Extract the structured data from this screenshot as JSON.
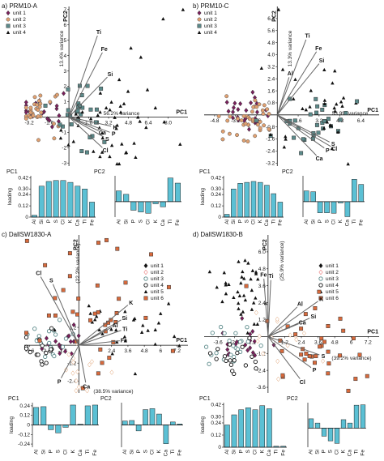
{
  "colors": {
    "bar_fill": "#5bc0d4",
    "loading_line": "#666666",
    "unit_1": "#7a1f5c",
    "unit_2": "#e0a070",
    "unit_3": "#5b8a8a",
    "unit_4": "#111111",
    "unit_5": "#111111",
    "unit_6": "#d86a3c"
  },
  "chart_data": [
    {
      "panel": "a) PRM10-A",
      "type": "scatter",
      "xlabel": "PC1",
      "ylabel": "PC2",
      "x_variance_label": "56.2% variance",
      "y_variance_label": "13.4% variance",
      "xlim": [
        -3.6,
        9.6
      ],
      "ylim": [
        -3.2,
        7.2
      ],
      "xticks": [
        "-3.2",
        "-1.6",
        "1.6",
        "3.2",
        "4.8",
        "6.4",
        "8.0"
      ],
      "yticks": [
        "-3",
        "-2",
        "-1",
        "1",
        "2",
        "3",
        "4",
        "5",
        "6",
        "7"
      ],
      "legend": {
        "placement": "top-left",
        "entries": [
          {
            "label": "unit 1",
            "marker": "diamond",
            "color": "#7a1f5c"
          },
          {
            "label": "unit 2",
            "marker": "circle",
            "color": "#e0a070"
          },
          {
            "label": "unit 3",
            "marker": "square",
            "color": "#5b8a8a"
          },
          {
            "label": "unit 4",
            "marker": "triangle",
            "color": "#111111"
          }
        ]
      },
      "loadings": [
        {
          "label": "Ti",
          "x": 2.3,
          "y": 5.3
        },
        {
          "label": "Fe",
          "x": 2.7,
          "y": 4.2
        },
        {
          "label": "Si",
          "x": 3.1,
          "y": 2.6
        },
        {
          "label": "Ca",
          "x": 2.4,
          "y": -0.9
        },
        {
          "label": "K",
          "x": 3.4,
          "y": -0.6
        },
        {
          "label": "P",
          "x": 3.3,
          "y": -1.0
        },
        {
          "label": "S",
          "x": 2.8,
          "y": -1.3
        },
        {
          "label": "Cl",
          "x": 2.7,
          "y": -2.0
        }
      ],
      "clusters": [
        {
          "unit": "unit 1",
          "cx": -2.2,
          "cy": 0.6,
          "sx": 0.9,
          "sy": 0.6,
          "n": 22
        },
        {
          "unit": "unit 2",
          "cx": -2.5,
          "cy": 0.5,
          "sx": 0.9,
          "sy": 0.7,
          "n": 30
        },
        {
          "unit": "unit 3",
          "cx": 0.9,
          "cy": 0.3,
          "sx": 0.8,
          "sy": 1.2,
          "n": 30
        },
        {
          "unit": "unit 4",
          "cx": 3.0,
          "cy": -0.6,
          "sx": 2.3,
          "sy": 1.4,
          "n": 45
        }
      ],
      "extra_points": [
        {
          "unit": "unit 4",
          "x": 9.2,
          "y": 7.0
        },
        {
          "unit": "unit 4",
          "x": 7.6,
          "y": 6.4
        },
        {
          "unit": "unit 4",
          "x": 5.0,
          "y": 4.5
        },
        {
          "unit": "unit 4",
          "x": 5.8,
          "y": 3.9
        }
      ],
      "bar_charts": [
        {
          "title": "PC1",
          "ylabel": "loading",
          "yticks": [
            "0",
            "0.12",
            "0.24",
            "0.30",
            "0.42"
          ],
          "ylim": [
            0,
            0.44
          ],
          "categories": [
            "Al",
            "Si",
            "P",
            "S",
            "Cl",
            "K",
            "Ca",
            "Ti",
            "Fe"
          ],
          "values": [
            0.02,
            0.33,
            0.38,
            0.39,
            0.39,
            0.37,
            0.33,
            0.3,
            0.16
          ]
        },
        {
          "title": "PC2",
          "yticks": [],
          "ylim": [
            -0.36,
            0.6
          ],
          "categories": [
            "Al",
            "Si",
            "P",
            "S",
            "Cl",
            "K",
            "Ca",
            "Ti",
            "Fe"
          ],
          "values": [
            0.25,
            0.17,
            -0.2,
            -0.24,
            -0.27,
            -0.05,
            -0.12,
            0.55,
            0.43
          ]
        }
      ]
    },
    {
      "panel": "b) PRM10-C",
      "type": "scatter",
      "xlabel": "PC1",
      "ylabel": "PC2",
      "x_variance_label": "53.9% variance",
      "y_variance_label": "13.3% variance",
      "xlim": [
        -5.6,
        7.8
      ],
      "ylim": [
        -3.4,
        7.2
      ],
      "xticks": [
        "-4.8",
        "-3.2",
        "-1.6",
        "1.6",
        "3.2",
        "4.8",
        "6.4"
      ],
      "yticks": [
        "-3.2",
        "-2.4",
        "-1.6",
        "-0.8",
        "0.8",
        "1.6",
        "2.4",
        "3.2",
        "4.0",
        "4.8",
        "5.6",
        "6.4"
      ],
      "legend": {
        "placement": "top-left",
        "entries": [
          {
            "label": "unit 1",
            "marker": "diamond",
            "color": "#7a1f5c"
          },
          {
            "label": "unit 2",
            "marker": "circle",
            "color": "#e0a070"
          },
          {
            "label": "unit 3",
            "marker": "square",
            "color": "#5b8a8a"
          },
          {
            "label": "unit 4",
            "marker": "triangle",
            "color": "#111111"
          }
        ]
      },
      "loadings": [
        {
          "label": "Ti",
          "x": 2.2,
          "y": 5.0
        },
        {
          "label": "Fe",
          "x": 3.0,
          "y": 4.2
        },
        {
          "label": "Al",
          "x": 0.9,
          "y": 2.5
        },
        {
          "label": "Si",
          "x": 3.2,
          "y": 3.4
        },
        {
          "label": "S",
          "x": 4.0,
          "y": -1.8
        },
        {
          "label": "P",
          "x": 3.6,
          "y": -2.2
        },
        {
          "label": "Cl",
          "x": 4.1,
          "y": -2.1
        },
        {
          "label": "Ca",
          "x": 3.0,
          "y": -2.7
        }
      ],
      "clusters": [
        {
          "unit": "unit 1",
          "cx": -2.4,
          "cy": 0.1,
          "sx": 0.9,
          "sy": 0.6,
          "n": 25
        },
        {
          "unit": "unit 2",
          "cx": -1.8,
          "cy": -0.3,
          "sx": 1.1,
          "sy": 0.7,
          "n": 40
        },
        {
          "unit": "unit 3",
          "cx": 2.2,
          "cy": -0.6,
          "sx": 1.6,
          "sy": 0.8,
          "n": 32
        },
        {
          "unit": "unit 4",
          "cx": 3.3,
          "cy": 0.6,
          "sx": 1.7,
          "sy": 1.4,
          "n": 30
        }
      ],
      "extra_points": [
        {
          "unit": "unit 4",
          "x": 0.1,
          "y": 7.0
        },
        {
          "unit": "unit 4",
          "x": 3.6,
          "y": 3.0
        },
        {
          "unit": "unit 3",
          "x": 6.1,
          "y": 0.9
        }
      ],
      "bar_charts": [
        {
          "title": "PC1",
          "ylabel": "loading",
          "yticks": [
            "0",
            "0.12",
            "0.24",
            "0.30",
            "0.42"
          ],
          "ylim": [
            0,
            0.44
          ],
          "categories": [
            "Al",
            "Si",
            "P",
            "S",
            "Cl",
            "K",
            "Ca",
            "Ti",
            "Fe"
          ],
          "values": [
            0.03,
            0.3,
            0.36,
            0.37,
            0.38,
            0.37,
            0.34,
            0.25,
            0.16
          ]
        },
        {
          "title": "PC2",
          "yticks": [],
          "ylim": [
            -0.36,
            0.6
          ],
          "categories": [
            "Al",
            "Si",
            "P",
            "S",
            "Cl",
            "K",
            "Ca",
            "Ti",
            "Fe"
          ],
          "values": [
            0.25,
            0.23,
            -0.26,
            -0.26,
            -0.27,
            -0.03,
            -0.35,
            0.52,
            0.4
          ]
        }
      ]
    },
    {
      "panel": "c) DallSW1830-A",
      "type": "scatter",
      "xlabel": "PC1",
      "ylabel": "PC2",
      "x_variance_label": "(38.5% variance)",
      "y_variance_label": "(22.2% variance)",
      "xlim": [
        -4.0,
        8.0
      ],
      "ylim": [
        -3.2,
        7.4
      ],
      "xticks": [
        "-3.6",
        "-2.4",
        "-1.2",
        "2.4",
        "3.6",
        "4.8",
        "6",
        "7.2"
      ],
      "yticks": [
        "-2.4",
        "-1.2",
        "1.2"
      ],
      "legend": {
        "placement": "top-right",
        "entries": [
          {
            "label": "unit 1",
            "marker": "diamond",
            "color": "#111111"
          },
          {
            "label": "unit 2",
            "marker": "diamond-open",
            "color": "#e03a3a"
          },
          {
            "label": "unit 3",
            "marker": "circle-open",
            "color": "#5b8a8a"
          },
          {
            "label": "unit 4",
            "marker": "circle-open",
            "color": "#111111"
          },
          {
            "label": "unit 5",
            "marker": "triangle",
            "color": "#111111"
          },
          {
            "label": "unit 6",
            "marker": "square",
            "color": "#d86a3c"
          }
        ]
      },
      "loadings": [
        {
          "label": "Cl",
          "x": -2.8,
          "y": 4.6
        },
        {
          "label": "S",
          "x": -1.9,
          "y": 4.1
        },
        {
          "label": "K",
          "x": 3.6,
          "y": 2.7
        },
        {
          "label": "Si",
          "x": 3.1,
          "y": 1.7
        },
        {
          "label": "Al",
          "x": 2.4,
          "y": 1.2
        },
        {
          "label": "Ti",
          "x": 3.1,
          "y": 1.0
        },
        {
          "label": "Fe",
          "x": 3.0,
          "y": 0.3
        },
        {
          "label": "P",
          "x": -1.3,
          "y": -2.2
        },
        {
          "label": "Ca",
          "x": 0.5,
          "y": -2.5
        }
      ],
      "clusters": [
        {
          "unit": "unit 1",
          "cx": -1.2,
          "cy": 0.2,
          "sx": 0.9,
          "sy": 0.6,
          "n": 18
        },
        {
          "unit": "unit 2",
          "cx": 0.4,
          "cy": -1.4,
          "sx": 0.9,
          "sy": 0.8,
          "n": 14
        },
        {
          "unit": "unit 3",
          "cx": -2.2,
          "cy": 0.4,
          "sx": 0.8,
          "sy": 0.7,
          "n": 18
        },
        {
          "unit": "unit 4",
          "cx": -2.8,
          "cy": -0.3,
          "sx": 0.7,
          "sy": 0.7,
          "n": 16
        },
        {
          "unit": "unit 5",
          "cx": 3.6,
          "cy": 1.0,
          "sx": 2.0,
          "sy": 0.9,
          "n": 28
        },
        {
          "unit": "unit 6",
          "cx": 0.8,
          "cy": 2.0,
          "sx": 2.4,
          "sy": 2.4,
          "n": 36
        }
      ],
      "extra_points": [
        {
          "unit": "unit 6",
          "x": -3.8,
          "y": 7.0
        },
        {
          "unit": "unit 6",
          "x": 5.3,
          "y": 6.1
        },
        {
          "unit": "unit 6",
          "x": 6.6,
          "y": 3.9
        },
        {
          "unit": "unit 5",
          "x": 7.0,
          "y": 0.6
        }
      ],
      "bar_charts": [
        {
          "title": "PC1",
          "ylabel": "loading",
          "yticks": [
            "-0.24",
            "-0.12",
            "0",
            "0.12",
            "0.24"
          ],
          "ylim": [
            -0.28,
            0.28
          ],
          "categories": [
            "Al",
            "Si",
            "P",
            "S",
            "Cl",
            "K",
            "Ca",
            "Ti",
            "Fe"
          ],
          "values": [
            0.22,
            0.23,
            -0.06,
            -0.1,
            -0.03,
            0.25,
            0.01,
            0.24,
            0.25
          ]
        },
        {
          "title": "PC2",
          "yticks": [],
          "ylim": [
            -0.45,
            0.45
          ],
          "categories": [
            "Al",
            "Si",
            "P",
            "S",
            "Cl",
            "K",
            "Ca",
            "Ti",
            "Fe"
          ],
          "values": [
            0.08,
            0.09,
            -0.12,
            0.31,
            0.33,
            0.22,
            -0.38,
            0.06,
            0.02
          ]
        }
      ]
    },
    {
      "panel": "d) DallSW1830-B",
      "type": "scatter",
      "xlabel": "PC1",
      "ylabel": "PC2",
      "x_variance_label": "(39.2% variance)",
      "y_variance_label": "(25.9% variance)",
      "xlim": [
        -4.6,
        8.0
      ],
      "ylim": [
        -4.0,
        7.2
      ],
      "xticks": [
        "-3.6",
        "-2.4",
        "-1.2",
        "1.2",
        "2.4",
        "3.6",
        "4.8",
        "6",
        "7.2"
      ],
      "yticks": [
        "-3.6",
        "-2.4",
        "-1.2",
        "1.2",
        "2.4",
        "3.6",
        "4.8",
        "6.0"
      ],
      "legend": {
        "placement": "top-right",
        "entries": [
          {
            "label": "unit 1",
            "marker": "diamond",
            "color": "#111111"
          },
          {
            "label": "unit 2",
            "marker": "diamond-open",
            "color": "#e03a3a"
          },
          {
            "label": "unit 3",
            "marker": "circle-open",
            "color": "#5b8a8a"
          },
          {
            "label": "unit 4",
            "marker": "circle-open",
            "color": "#111111"
          },
          {
            "label": "unit 5",
            "marker": "triangle",
            "color": "#111111"
          },
          {
            "label": "unit 6",
            "marker": "square",
            "color": "#d86a3c"
          }
        ]
      },
      "loadings": [
        {
          "label": "Fe",
          "x": -0.3,
          "y": 4.1
        },
        {
          "label": "Ti",
          "x": 0.2,
          "y": 4.0
        },
        {
          "label": "Al",
          "x": 2.1,
          "y": 2.1
        },
        {
          "label": "K",
          "x": 3.6,
          "y": 2.5
        },
        {
          "label": "Si",
          "x": 3.0,
          "y": 1.3
        },
        {
          "label": "Ca",
          "x": 2.2,
          "y": 0.9
        },
        {
          "label": "S",
          "x": 3.7,
          "y": -1.3
        },
        {
          "label": "P",
          "x": 3.1,
          "y": -2.2
        },
        {
          "label": "Cl",
          "x": 2.3,
          "y": -3.0
        }
      ],
      "clusters": [
        {
          "unit": "unit 1",
          "cx": -1.8,
          "cy": -0.4,
          "sx": 0.9,
          "sy": 0.8,
          "n": 18
        },
        {
          "unit": "unit 2",
          "cx": 0.9,
          "cy": -0.2,
          "sx": 1.3,
          "sy": 1.1,
          "n": 16
        },
        {
          "unit": "unit 3",
          "cx": -2.6,
          "cy": -0.8,
          "sx": 0.9,
          "sy": 0.9,
          "n": 22
        },
        {
          "unit": "unit 4",
          "cx": -2.2,
          "cy": -1.4,
          "sx": 0.9,
          "sy": 0.8,
          "n": 18
        },
        {
          "unit": "unit 5",
          "cx": -1.8,
          "cy": 2.6,
          "sx": 1.0,
          "sy": 1.6,
          "n": 36
        },
        {
          "unit": "unit 6",
          "cx": 3.3,
          "cy": -0.3,
          "sx": 1.7,
          "sy": 1.8,
          "n": 34
        }
      ],
      "extra_points": [
        {
          "unit": "unit 6",
          "x": 6.6,
          "y": -1.3
        },
        {
          "unit": "unit 6",
          "x": 6.3,
          "y": -3.0
        },
        {
          "unit": "unit 5",
          "x": -4.2,
          "y": 4.6
        }
      ],
      "bar_charts": [
        {
          "title": "PC1",
          "ylabel": "loading",
          "yticks": [
            "0",
            "0.12",
            "0.24",
            "0.30",
            "0.42"
          ],
          "ylim": [
            0,
            0.44
          ],
          "categories": [
            "Al",
            "Si",
            "P",
            "S",
            "Cl",
            "K",
            "Ca",
            "Ti",
            "Fe"
          ],
          "values": [
            0.22,
            0.32,
            0.37,
            0.39,
            0.37,
            0.41,
            0.38,
            0.01,
            0.01
          ]
        },
        {
          "title": "PC2",
          "yticks": [],
          "ylim": [
            -0.45,
            0.6
          ],
          "categories": [
            "Al",
            "Si",
            "P",
            "S",
            "Cl",
            "K",
            "Ca",
            "Ti",
            "Fe"
          ],
          "values": [
            0.22,
            0.12,
            -0.19,
            -0.3,
            -0.36,
            0.2,
            0.12,
            0.54,
            0.55
          ]
        }
      ]
    }
  ]
}
